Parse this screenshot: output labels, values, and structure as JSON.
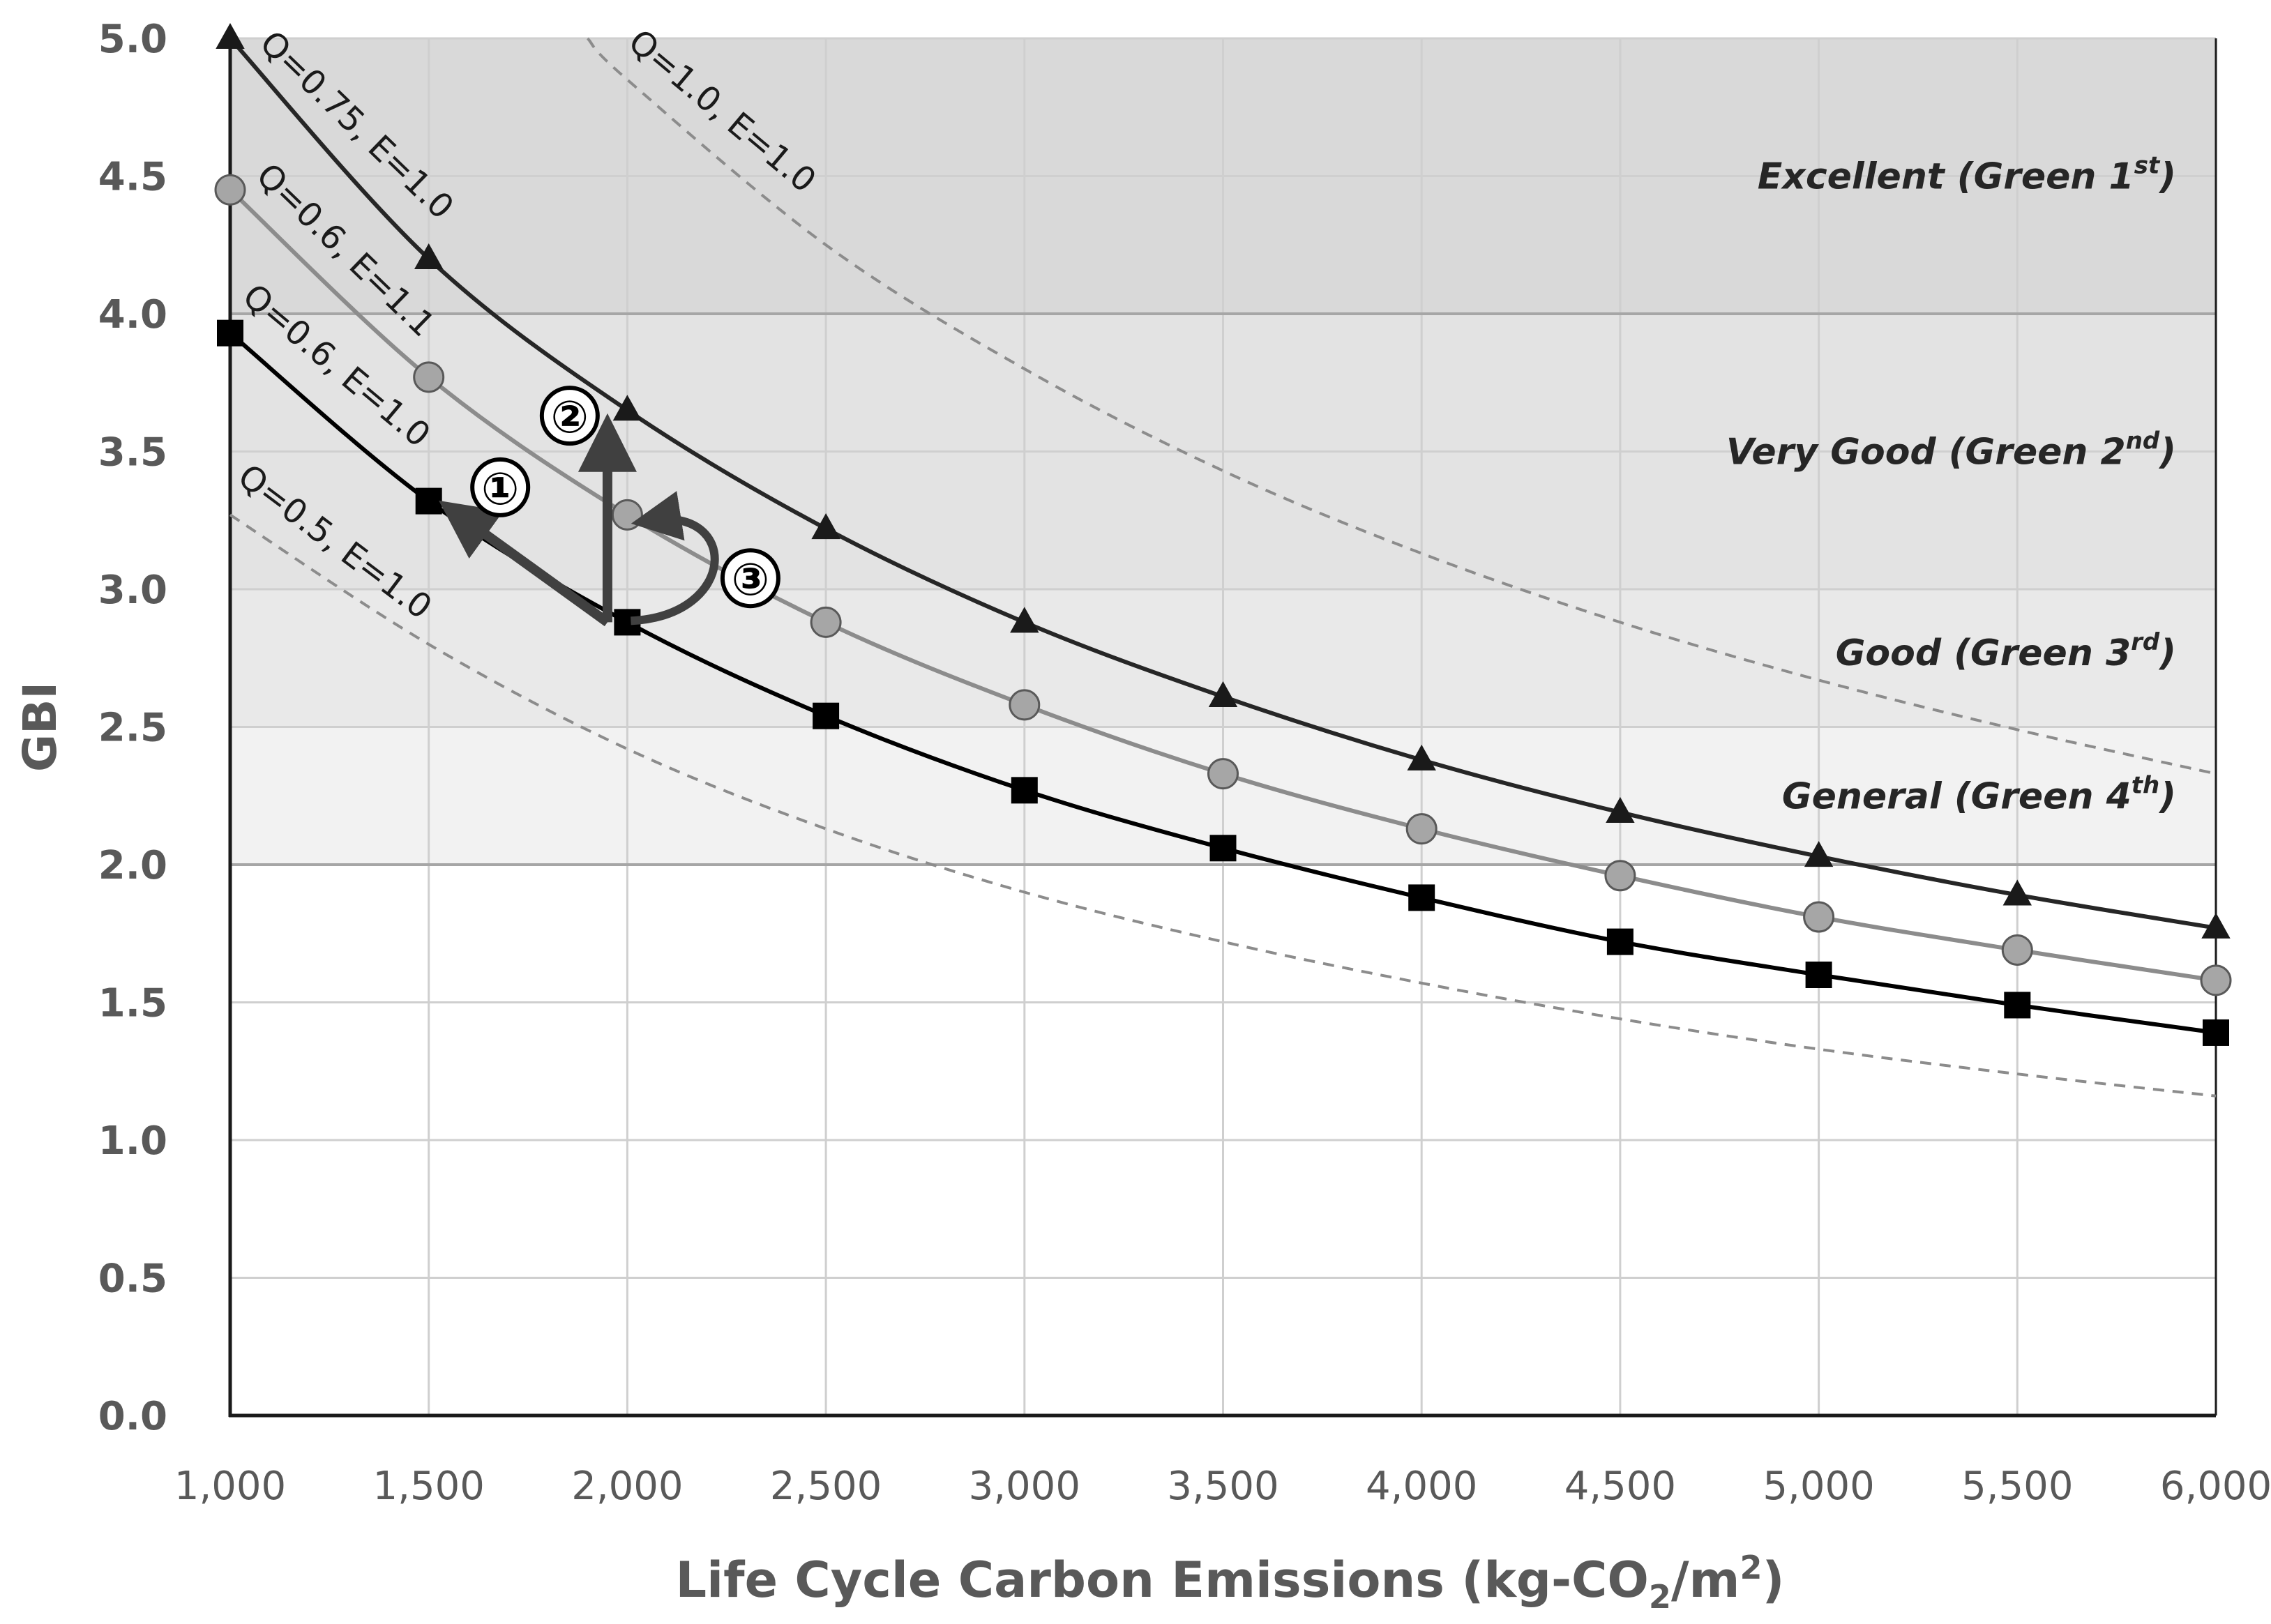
{
  "chart_data": {
    "type": "line",
    "title": "",
    "xlabel": "Life Cycle Carbon Emissions (kg-CO2/m2)",
    "xlabel_parts": {
      "main": "Life Cycle Carbon Emissions (kg-CO",
      "sub": "2",
      "mid": "/m",
      "sup": "2",
      "end": ")"
    },
    "ylabel": "GBI",
    "xlim": [
      1000,
      6000
    ],
    "ylim": [
      0,
      5
    ],
    "x_ticks": [
      1000,
      1500,
      2000,
      2500,
      3000,
      3500,
      4000,
      4500,
      5000,
      5500,
      6000
    ],
    "x_tick_labels": [
      "1,000",
      "1,500",
      "2,000",
      "2,500",
      "3,000",
      "3,500",
      "4,000",
      "4,500",
      "5,000",
      "5,500",
      "6,000"
    ],
    "y_ticks": [
      0,
      0.5,
      1,
      1.5,
      2,
      2.5,
      3,
      3.5,
      4,
      4.5,
      5
    ],
    "y_tick_labels": [
      "0.0",
      "0.5",
      "1.0",
      "1.5",
      "2.0",
      "2.5",
      "3.0",
      "3.5",
      "4.0",
      "4.5",
      "5.0"
    ],
    "grid": true,
    "bands": [
      {
        "name": "Excellent (Green 1st)",
        "base": "Excellent (Green 1",
        "sup": "st",
        "end": ")",
        "from": 4.0,
        "to": 5.0,
        "color": "#d9d9d9",
        "label_y": 4.5
      },
      {
        "name": "Very Good (Green 2nd)",
        "base": "Very Good (Green 2",
        "sup": "nd",
        "end": ")",
        "from": 3.0,
        "to": 4.0,
        "color": "#e3e3e3",
        "label_y": 3.5
      },
      {
        "name": "Good (Green 3rd)",
        "base": "Good (Green 3",
        "sup": "rd",
        "end": ")",
        "from": 2.5,
        "to": 3.0,
        "color": "#e9e9e9",
        "label_y": 2.77
      },
      {
        "name": "General (Green 4th)",
        "base": "General (Green 4",
        "sup": "th",
        "end": ")",
        "from": 2.0,
        "to": 2.5,
        "color": "#f2f2f2",
        "label_y": 2.25
      }
    ],
    "series": [
      {
        "name": "Q=0.75, E=1.0",
        "label": "Q=0.75, E=1.0",
        "marker": "triangle",
        "color": "#262626",
        "style": "solid",
        "x": [
          1000,
          1500,
          2000,
          2500,
          3000,
          3500,
          4000,
          4500,
          5000,
          5500,
          6000
        ],
        "values": [
          5.0,
          4.2,
          3.65,
          3.22,
          2.88,
          2.61,
          2.38,
          2.19,
          2.03,
          1.89,
          1.77
        ]
      },
      {
        "name": "Q=0.6, E=1.1",
        "label": "Q=0.6, E=1.1",
        "marker": "circle",
        "color": "#8c8c8c",
        "style": "solid",
        "x": [
          1000,
          1500,
          2000,
          2500,
          3000,
          3500,
          4000,
          4500,
          5000,
          5500,
          6000
        ],
        "values": [
          4.45,
          3.77,
          3.27,
          2.88,
          2.58,
          2.33,
          2.13,
          1.96,
          1.81,
          1.69,
          1.58
        ]
      },
      {
        "name": "Q=0.6, E=1.0",
        "label": "Q=0.6, E=1.0",
        "marker": "square",
        "color": "#000000",
        "style": "solid",
        "x": [
          1000,
          1500,
          2000,
          2500,
          3000,
          3500,
          4000,
          4500,
          5000,
          5500,
          6000
        ],
        "values": [
          3.93,
          3.32,
          2.88,
          2.54,
          2.27,
          2.06,
          1.88,
          1.72,
          1.6,
          1.49,
          1.39
        ]
      },
      {
        "name": "Q=1.0, E=1.0",
        "label": "Q=1.0, E=1.0",
        "marker": "none",
        "color": "#8c8c8c",
        "style": "dashed",
        "x": [
          1900,
          2000,
          2500,
          3000,
          3500,
          4000,
          4500,
          5000,
          5500,
          6000
        ],
        "values": [
          5.0,
          4.85,
          4.25,
          3.8,
          3.43,
          3.13,
          2.88,
          2.67,
          2.49,
          2.33
        ]
      },
      {
        "name": "Q=0.5, E=1.0",
        "label": "Q=0.5, E=1.0",
        "marker": "none",
        "color": "#8c8c8c",
        "style": "dashed",
        "x": [
          1000,
          1500,
          2000,
          2500,
          3000,
          3500,
          4000,
          4500,
          5000,
          5500,
          6000
        ],
        "values": [
          3.27,
          2.8,
          2.42,
          2.13,
          1.9,
          1.72,
          1.57,
          1.44,
          1.33,
          1.24,
          1.16
        ]
      }
    ],
    "annotations": [
      {
        "label": "①",
        "x": 1680,
        "y": 3.37
      },
      {
        "label": "②",
        "x": 1855,
        "y": 3.63
      },
      {
        "label": "③",
        "x": 2310,
        "y": 3.04
      }
    ]
  }
}
